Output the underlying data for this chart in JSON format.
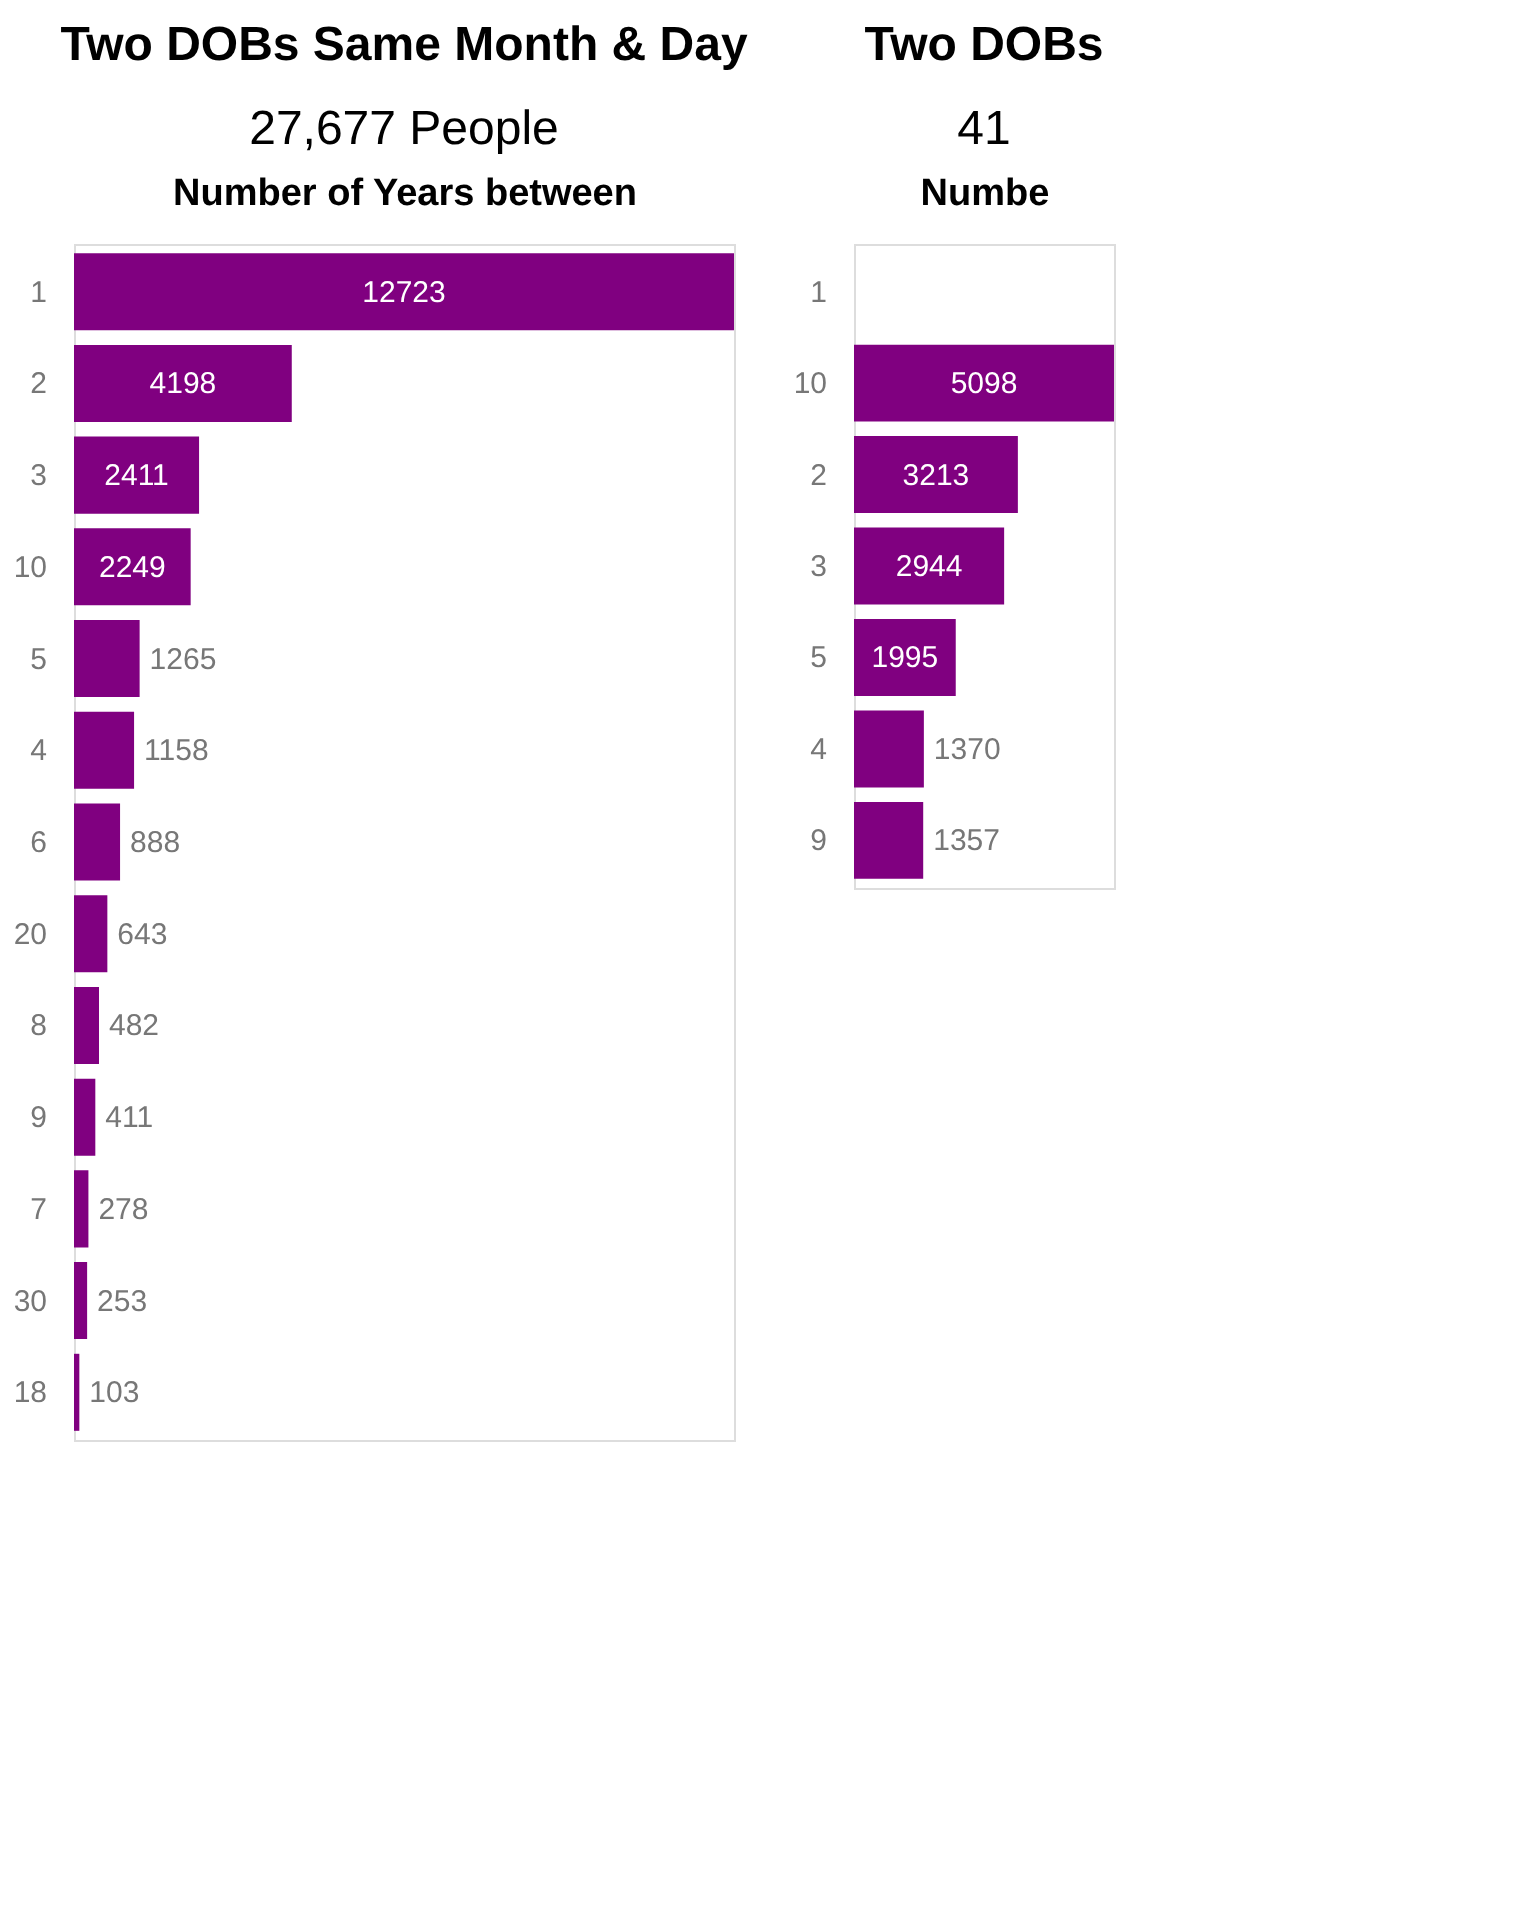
{
  "chart_data": [
    {
      "type": "bar",
      "orientation": "horizontal",
      "title": "Two DOBs Same Month & Day",
      "subtitle": "27,677 People",
      "xlabel": "Number of Years between",
      "categories": [
        "1",
        "2",
        "3",
        "10",
        "5",
        "4",
        "6",
        "20",
        "8",
        "9",
        "7",
        "30",
        "18"
      ],
      "values": [
        12723,
        4198,
        2411,
        2249,
        1265,
        1158,
        888,
        643,
        482,
        411,
        278,
        253,
        103
      ],
      "color": "#800080",
      "data_labels": true
    },
    {
      "type": "bar",
      "orientation": "horizontal",
      "title": "Two DOBs",
      "subtitle": "41",
      "xlabel": "Numbe",
      "categories": [
        "1",
        "10",
        "2",
        "3",
        "5",
        "4",
        "9"
      ],
      "values": [
        null,
        5098,
        3213,
        2944,
        1995,
        1370,
        1357
      ],
      "color": "#800080",
      "data_labels": true
    }
  ]
}
